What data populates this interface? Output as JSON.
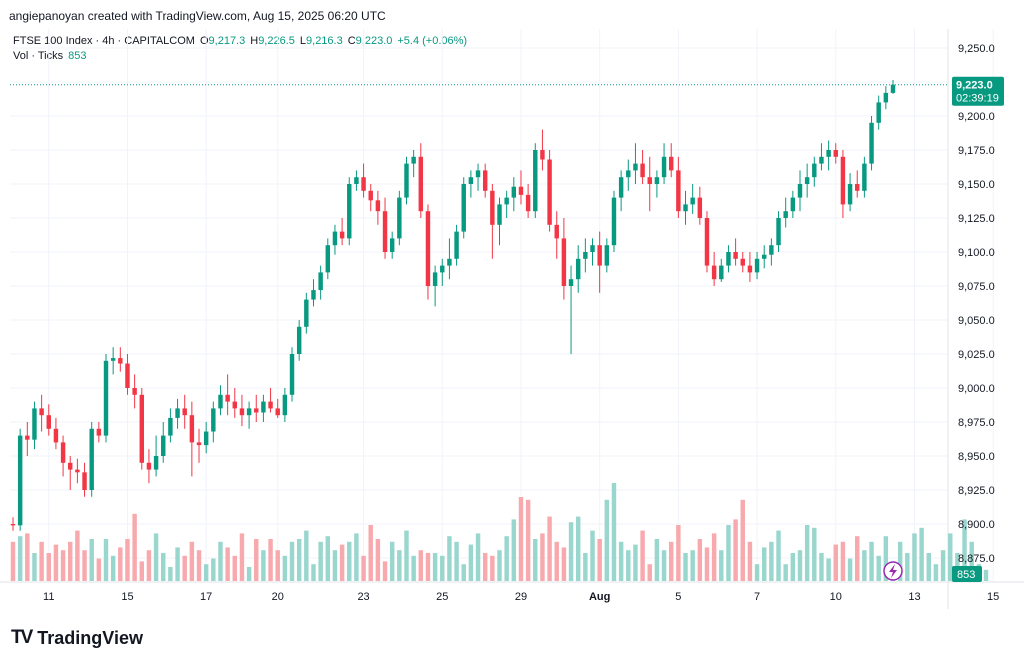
{
  "caption": "angiepanoyan created with TradingView.com, Aug 15, 2025 06:20 UTC",
  "legend": {
    "symbol": "FTSE 100 Index · 4h · CAPITALCOM",
    "o_label": "O",
    "o_value": "9,217.3",
    "h_label": "H",
    "h_value": "9,226.5",
    "l_label": "L",
    "l_value": "9,216.3",
    "c_label": "C",
    "c_value": "9,223.0",
    "change": "+5.4 (+0.06%)",
    "vol_label": "Vol · Ticks",
    "vol_value": "853"
  },
  "price_badge": {
    "price": "9,223.0",
    "countdown": "02:39:19"
  },
  "volume_badge": "853",
  "footer_brand": "TradingView",
  "colors": {
    "up": "#089981",
    "down": "#f23645",
    "vol_up": "#99d6cd",
    "vol_down": "#f7a9ad",
    "grid": "#f0f3fa",
    "axis_text": "#131722"
  },
  "chart_data": {
    "type": "candlestick",
    "ylim": [
      8860,
      9265
    ],
    "yticks": [
      8875,
      8900,
      8925,
      8950,
      8975,
      9000,
      9025,
      9050,
      9075,
      9100,
      9125,
      9150,
      9175,
      9200,
      9225,
      9250
    ],
    "ytick_labels": [
      "8,875.0",
      "8,900.0",
      "8,925.0",
      "8,950.0",
      "8,975.0",
      "9,000.0",
      "9,025.0",
      "9,050.0",
      "9,075.0",
      "9,100.0",
      "9,125.0",
      "9,150.0",
      "9,175.0",
      "9,200.0",
      "9,225.0",
      "9,250.0"
    ],
    "x_ticks": [
      {
        "label": "11",
        "index": 5
      },
      {
        "label": "15",
        "index": 16
      },
      {
        "label": "17",
        "index": 27
      },
      {
        "label": "20",
        "index": 37
      },
      {
        "label": "23",
        "index": 49
      },
      {
        "label": "25",
        "index": 60
      },
      {
        "label": "29",
        "index": 71
      },
      {
        "label": "Aug",
        "index": 82
      },
      {
        "label": "5",
        "index": 93
      },
      {
        "label": "7",
        "index": 104
      },
      {
        "label": "10",
        "index": 115
      },
      {
        "label": "13",
        "index": 126
      },
      {
        "label": "15",
        "index": 137
      }
    ],
    "candles": [
      [
        8900,
        8905,
        8895,
        8899
      ],
      [
        8899,
        8970,
        8895,
        8965
      ],
      [
        8965,
        8975,
        8950,
        8962
      ],
      [
        8962,
        8990,
        8955,
        8985
      ],
      [
        8985,
        8995,
        8968,
        8980
      ],
      [
        8980,
        8988,
        8965,
        8970
      ],
      [
        8970,
        8978,
        8955,
        8960
      ],
      [
        8960,
        8965,
        8935,
        8945
      ],
      [
        8945,
        8950,
        8925,
        8940
      ],
      [
        8940,
        8948,
        8930,
        8938
      ],
      [
        8938,
        8945,
        8920,
        8925
      ],
      [
        8925,
        8975,
        8920,
        8970
      ],
      [
        8970,
        8975,
        8960,
        8965
      ],
      [
        8965,
        9025,
        8960,
        9020
      ],
      [
        9020,
        9030,
        9010,
        9022
      ],
      [
        9022,
        9030,
        9012,
        9018
      ],
      [
        9018,
        9025,
        8995,
        9000
      ],
      [
        9000,
        9010,
        8985,
        8995
      ],
      [
        8995,
        9000,
        8940,
        8945
      ],
      [
        8945,
        8955,
        8930,
        8940
      ],
      [
        8940,
        8965,
        8935,
        8950
      ],
      [
        8950,
        8975,
        8945,
        8965
      ],
      [
        8965,
        8985,
        8960,
        8978
      ],
      [
        8978,
        8992,
        8970,
        8985
      ],
      [
        8985,
        8995,
        8970,
        8980
      ],
      [
        8980,
        8990,
        8935,
        8960
      ],
      [
        8960,
        8970,
        8945,
        8958
      ],
      [
        8958,
        8975,
        8952,
        8968
      ],
      [
        8968,
        8990,
        8960,
        8985
      ],
      [
        8985,
        9002,
        8980,
        8995
      ],
      [
        8995,
        9010,
        8980,
        8990
      ],
      [
        8990,
        9000,
        8978,
        8985
      ],
      [
        8985,
        8995,
        8972,
        8980
      ],
      [
        8980,
        8990,
        8970,
        8985
      ],
      [
        8985,
        8995,
        8975,
        8982
      ],
      [
        8982,
        8995,
        8975,
        8990
      ],
      [
        8990,
        9000,
        8982,
        8985
      ],
      [
        8985,
        8992,
        8978,
        8980
      ],
      [
        8980,
        9000,
        8975,
        8995
      ],
      [
        8995,
        9030,
        8990,
        9025
      ],
      [
        9025,
        9050,
        9020,
        9045
      ],
      [
        9045,
        9070,
        9040,
        9065
      ],
      [
        9065,
        9080,
        9060,
        9072
      ],
      [
        9072,
        9090,
        9065,
        9085
      ],
      [
        9085,
        9110,
        9080,
        9105
      ],
      [
        9105,
        9120,
        9098,
        9115
      ],
      [
        9115,
        9125,
        9105,
        9110
      ],
      [
        9110,
        9155,
        9105,
        9150
      ],
      [
        9150,
        9160,
        9145,
        9155
      ],
      [
        9155,
        9165,
        9140,
        9145
      ],
      [
        9145,
        9150,
        9130,
        9138
      ],
      [
        9138,
        9145,
        9120,
        9130
      ],
      [
        9130,
        9140,
        9095,
        9100
      ],
      [
        9100,
        9115,
        9095,
        9110
      ],
      [
        9110,
        9145,
        9105,
        9140
      ],
      [
        9140,
        9170,
        9135,
        9165
      ],
      [
        9165,
        9175,
        9155,
        9170
      ],
      [
        9170,
        9180,
        9125,
        9130
      ],
      [
        9130,
        9135,
        9065,
        9075
      ],
      [
        9075,
        9090,
        9060,
        9085
      ],
      [
        9085,
        9095,
        9075,
        9090
      ],
      [
        9090,
        9110,
        9080,
        9095
      ],
      [
        9095,
        9120,
        9090,
        9115
      ],
      [
        9115,
        9155,
        9110,
        9150
      ],
      [
        9150,
        9160,
        9140,
        9155
      ],
      [
        9155,
        9165,
        9145,
        9160
      ],
      [
        9160,
        9165,
        9140,
        9145
      ],
      [
        9145,
        9150,
        9095,
        9120
      ],
      [
        9120,
        9140,
        9105,
        9135
      ],
      [
        9135,
        9145,
        9125,
        9140
      ],
      [
        9140,
        9155,
        9130,
        9148
      ],
      [
        9148,
        9160,
        9135,
        9142
      ],
      [
        9142,
        9150,
        9125,
        9130
      ],
      [
        9130,
        9180,
        9125,
        9175
      ],
      [
        9175,
        9190,
        9160,
        9168
      ],
      [
        9168,
        9175,
        9115,
        9120
      ],
      [
        9120,
        9130,
        9095,
        9110
      ],
      [
        9110,
        9125,
        9065,
        9075
      ],
      [
        9075,
        9090,
        9025,
        9080
      ],
      [
        9080,
        9105,
        9070,
        9095
      ],
      [
        9095,
        9110,
        9085,
        9100
      ],
      [
        9100,
        9110,
        9090,
        9105
      ],
      [
        9105,
        9115,
        9070,
        9090
      ],
      [
        9090,
        9110,
        9085,
        9105
      ],
      [
        9105,
        9145,
        9100,
        9140
      ],
      [
        9140,
        9160,
        9130,
        9155
      ],
      [
        9155,
        9168,
        9145,
        9160
      ],
      [
        9160,
        9180,
        9150,
        9165
      ],
      [
        9165,
        9175,
        9150,
        9155
      ],
      [
        9155,
        9170,
        9130,
        9150
      ],
      [
        9150,
        9160,
        9140,
        9155
      ],
      [
        9155,
        9180,
        9150,
        9170
      ],
      [
        9170,
        9180,
        9155,
        9160
      ],
      [
        9160,
        9170,
        9125,
        9130
      ],
      [
        9130,
        9145,
        9120,
        9135
      ],
      [
        9135,
        9150,
        9128,
        9140
      ],
      [
        9140,
        9148,
        9120,
        9125
      ],
      [
        9125,
        9130,
        9085,
        9090
      ],
      [
        9090,
        9100,
        9075,
        9080
      ],
      [
        9080,
        9095,
        9078,
        9090
      ],
      [
        9090,
        9105,
        9085,
        9100
      ],
      [
        9100,
        9110,
        9090,
        9095
      ],
      [
        9095,
        9100,
        9085,
        9090
      ],
      [
        9090,
        9100,
        9078,
        9085
      ],
      [
        9085,
        9100,
        9080,
        9095
      ],
      [
        9095,
        9105,
        9088,
        9098
      ],
      [
        9098,
        9110,
        9090,
        9105
      ],
      [
        9105,
        9130,
        9100,
        9125
      ],
      [
        9125,
        9140,
        9118,
        9130
      ],
      [
        9130,
        9145,
        9125,
        9140
      ],
      [
        9140,
        9160,
        9130,
        9150
      ],
      [
        9150,
        9165,
        9140,
        9155
      ],
      [
        9155,
        9170,
        9148,
        9165
      ],
      [
        9165,
        9180,
        9160,
        9170
      ],
      [
        9170,
        9182,
        9160,
        9175
      ],
      [
        9175,
        9180,
        9165,
        9170
      ],
      [
        9170,
        9175,
        9125,
        9135
      ],
      [
        9135,
        9158,
        9130,
        9150
      ],
      [
        9150,
        9160,
        9140,
        9145
      ],
      [
        9145,
        9170,
        9140,
        9165
      ],
      [
        9165,
        9200,
        9160,
        9195
      ],
      [
        9195,
        9215,
        9190,
        9210
      ],
      [
        9210,
        9222,
        9205,
        9217
      ],
      [
        9217,
        9226.5,
        9216.3,
        9223
      ]
    ],
    "volume_ymax": 100,
    "volume": [
      28,
      32,
      34,
      20,
      28,
      20,
      26,
      22,
      28,
      36,
      22,
      30,
      16,
      30,
      18,
      24,
      30,
      48,
      14,
      22,
      34,
      20,
      10,
      24,
      18,
      28,
      22,
      12,
      16,
      28,
      24,
      18,
      34,
      10,
      30,
      22,
      30,
      22,
      18,
      28,
      30,
      36,
      12,
      28,
      32,
      22,
      26,
      28,
      34,
      18,
      40,
      30,
      14,
      28,
      22,
      36,
      18,
      22,
      20,
      20,
      18,
      32,
      28,
      12,
      26,
      34,
      20,
      18,
      22,
      32,
      44,
      60,
      58,
      30,
      34,
      46,
      28,
      24,
      42,
      46,
      20,
      36,
      30,
      58,
      70,
      28,
      22,
      26,
      36,
      12,
      30,
      22,
      28,
      40,
      20,
      22,
      30,
      24,
      34,
      22,
      40,
      44,
      58,
      28,
      12,
      24,
      28,
      36,
      12,
      20,
      22,
      40,
      38,
      20,
      16,
      26,
      28,
      16,
      32,
      22,
      28,
      18,
      32,
      14,
      28,
      20,
      34,
      38,
      20,
      12,
      22,
      34,
      20,
      44,
      28,
      12,
      8
    ]
  }
}
